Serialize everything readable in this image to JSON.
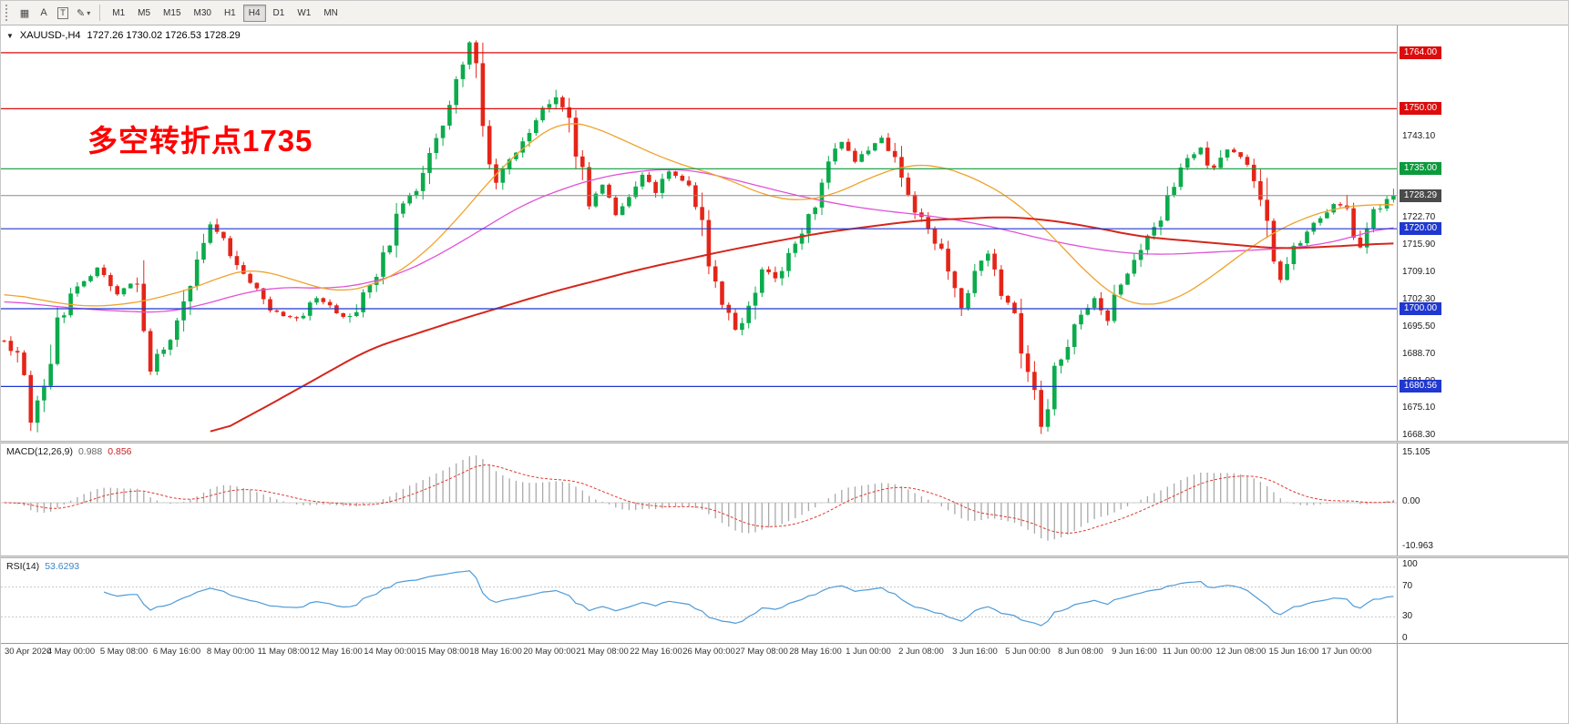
{
  "toolbar": {
    "timeframes": [
      "M1",
      "M5",
      "M15",
      "M30",
      "H1",
      "H4",
      "D1",
      "W1",
      "MN"
    ],
    "active_timeframe": "H4"
  },
  "icons": {
    "collapse": "▼",
    "chevron_down": "▾",
    "charts": "▦",
    "text_label": "A",
    "text": "T",
    "draw": "✎"
  },
  "chart": {
    "header": {
      "symbol": "XAUUSD-,H4",
      "ohlc": "1727.26 1730.02 1726.53 1728.29"
    },
    "annotation": {
      "text": "多空转折点1735",
      "color": "#ff0000"
    },
    "hlines": [
      {
        "price": 1764.0,
        "label": "1764.00",
        "color": "#dc0c0c"
      },
      {
        "price": 1750.0,
        "label": "1750.00",
        "color": "#dc0c0c"
      },
      {
        "price": 1735.0,
        "label": "1735.00",
        "color": "#0c9a3c"
      },
      {
        "price": 1720.0,
        "label": "1720.00",
        "color": "#2038cf"
      },
      {
        "price": 1700.0,
        "label": "1700.00",
        "color": "#2038cf"
      },
      {
        "price": 1680.56,
        "label": "1680.56",
        "color": "#2038cf"
      }
    ],
    "current_price": {
      "price": 1728.29,
      "label": "1728.29",
      "color": "#4a4a4a",
      "line_color": "#8a8a8a"
    },
    "y_axis": {
      "ticks": [
        {
          "price": 1743.1,
          "label": "1743.10"
        },
        {
          "price": 1722.7,
          "label": "1722.70"
        },
        {
          "price": 1715.9,
          "label": "1715.90"
        },
        {
          "price": 1709.1,
          "label": "1709.10"
        },
        {
          "price": 1702.3,
          "label": "1702.30"
        },
        {
          "price": 1695.5,
          "label": "1695.50"
        },
        {
          "price": 1688.7,
          "label": "1688.70"
        },
        {
          "price": 1681.9,
          "label": "1681.90"
        },
        {
          "price": 1675.1,
          "label": "1675.10"
        },
        {
          "price": 1668.3,
          "label": "1668.30"
        }
      ]
    },
    "x_axis": {
      "labels": [
        "30 Apr 2020",
        "4 May 00:00",
        "5 May 08:00",
        "6 May 16:00",
        "8 May 00:00",
        "11 May 08:00",
        "12 May 16:00",
        "14 May 00:00",
        "15 May 08:00",
        "18 May 16:00",
        "20 May 00:00",
        "21 May 08:00",
        "22 May 16:00",
        "26 May 00:00",
        "27 May 08:00",
        "28 May 16:00",
        "1 Jun 00:00",
        "2 Jun 08:00",
        "3 Jun 16:00",
        "5 Jun 00:00",
        "8 Jun 08:00",
        "9 Jun 16:00",
        "11 Jun 00:00",
        "12 Jun 08:00",
        "15 Jun 16:00",
        "17 Jun 00:00"
      ]
    }
  },
  "indicators": {
    "macd": {
      "label": "MACD(12,26,9)",
      "value1": "0.988",
      "value2": "0.856",
      "axis": [
        "15.105",
        "0.00",
        "-10.963"
      ]
    },
    "rsi": {
      "label": "RSI(14)",
      "value": "53.6293",
      "axis": [
        "100",
        "70",
        "30",
        "0"
      ]
    }
  },
  "chart_data": {
    "type": "candlestick",
    "symbol": "XAUUSD-",
    "timeframe": "H4",
    "candle_count": 210,
    "y_range": [
      1667.0,
      1770.8
    ],
    "ohlc_current": {
      "open": 1727.26,
      "high": 1730.02,
      "low": 1726.53,
      "close": 1728.29
    },
    "price_path": [
      [
        0,
        1692
      ],
      [
        2,
        1688
      ],
      [
        4,
        1672
      ],
      [
        6,
        1680
      ],
      [
        8,
        1696
      ],
      [
        11,
        1706
      ],
      [
        14,
        1710
      ],
      [
        17,
        1704
      ],
      [
        20,
        1707
      ],
      [
        22,
        1686
      ],
      [
        24,
        1690
      ],
      [
        27,
        1701
      ],
      [
        29,
        1713
      ],
      [
        31,
        1722
      ],
      [
        33,
        1717
      ],
      [
        36,
        1709
      ],
      [
        40,
        1700
      ],
      [
        44,
        1697
      ],
      [
        47,
        1703
      ],
      [
        50,
        1699
      ],
      [
        52,
        1697
      ],
      [
        54,
        1704
      ],
      [
        56,
        1709
      ],
      [
        58,
        1717
      ],
      [
        60,
        1727
      ],
      [
        62,
        1729
      ],
      [
        64,
        1737
      ],
      [
        66,
        1747
      ],
      [
        68,
        1757
      ],
      [
        70,
        1765
      ],
      [
        71,
        1758
      ],
      [
        72,
        1746
      ],
      [
        73,
        1734
      ],
      [
        74,
        1731
      ],
      [
        76,
        1737
      ],
      [
        78,
        1742
      ],
      [
        80,
        1747
      ],
      [
        82,
        1752
      ],
      [
        83,
        1754
      ],
      [
        85,
        1747
      ],
      [
        87,
        1733
      ],
      [
        88,
        1726
      ],
      [
        90,
        1730
      ],
      [
        92,
        1724
      ],
      [
        94,
        1728
      ],
      [
        96,
        1733
      ],
      [
        98,
        1729
      ],
      [
        100,
        1734
      ],
      [
        102,
        1732
      ],
      [
        104,
        1728
      ],
      [
        106,
        1713
      ],
      [
        108,
        1701
      ],
      [
        110,
        1694
      ],
      [
        112,
        1699
      ],
      [
        114,
        1710
      ],
      [
        116,
        1707
      ],
      [
        118,
        1713
      ],
      [
        120,
        1719
      ],
      [
        122,
        1727
      ],
      [
        124,
        1737
      ],
      [
        126,
        1742
      ],
      [
        128,
        1737
      ],
      [
        130,
        1740
      ],
      [
        132,
        1744
      ],
      [
        134,
        1737
      ],
      [
        136,
        1728
      ],
      [
        138,
        1722
      ],
      [
        140,
        1717
      ],
      [
        142,
        1711
      ],
      [
        144,
        1701
      ],
      [
        146,
        1709
      ],
      [
        148,
        1714
      ],
      [
        150,
        1704
      ],
      [
        152,
        1697
      ],
      [
        154,
        1684
      ],
      [
        156,
        1671
      ],
      [
        157,
        1676
      ],
      [
        158,
        1684
      ],
      [
        160,
        1691
      ],
      [
        162,
        1699
      ],
      [
        164,
        1703
      ],
      [
        166,
        1698
      ],
      [
        168,
        1706
      ],
      [
        170,
        1713
      ],
      [
        172,
        1719
      ],
      [
        174,
        1723
      ],
      [
        176,
        1731
      ],
      [
        178,
        1738
      ],
      [
        180,
        1740
      ],
      [
        182,
        1734
      ],
      [
        184,
        1740
      ],
      [
        186,
        1738
      ],
      [
        188,
        1733
      ],
      [
        190,
        1722
      ],
      [
        191,
        1710
      ],
      [
        192,
        1707
      ],
      [
        194,
        1715
      ],
      [
        196,
        1720
      ],
      [
        198,
        1723
      ],
      [
        200,
        1726
      ],
      [
        202,
        1726
      ],
      [
        203,
        1717
      ],
      [
        204,
        1716
      ],
      [
        206,
        1724
      ],
      [
        208,
        1727
      ],
      [
        209,
        1728.3
      ]
    ],
    "moving_averages": [
      {
        "name": "ma-fast-magenta",
        "color": "#df52d8",
        "width": 1.3,
        "path": [
          [
            0,
            1702
          ],
          [
            8,
            1700.5
          ],
          [
            16,
            1699.5
          ],
          [
            24,
            1699
          ],
          [
            30,
            1701
          ],
          [
            36,
            1704
          ],
          [
            42,
            1705.5
          ],
          [
            48,
            1705
          ],
          [
            54,
            1706
          ],
          [
            60,
            1709
          ],
          [
            66,
            1714
          ],
          [
            72,
            1720
          ],
          [
            78,
            1726
          ],
          [
            84,
            1730
          ],
          [
            90,
            1733
          ],
          [
            96,
            1734.5
          ],
          [
            100,
            1735
          ],
          [
            104,
            1734.5
          ],
          [
            108,
            1733
          ],
          [
            114,
            1730.5
          ],
          [
            120,
            1728
          ],
          [
            126,
            1726
          ],
          [
            132,
            1724.5
          ],
          [
            138,
            1723.5
          ],
          [
            144,
            1722
          ],
          [
            150,
            1720
          ],
          [
            156,
            1717.5
          ],
          [
            162,
            1715.5
          ],
          [
            168,
            1714
          ],
          [
            174,
            1713.5
          ],
          [
            180,
            1714
          ],
          [
            186,
            1714.5
          ],
          [
            192,
            1715
          ],
          [
            198,
            1716
          ],
          [
            203,
            1718
          ],
          [
            209,
            1721
          ]
        ]
      },
      {
        "name": "ma-mid-orange",
        "color": "#efa32c",
        "width": 1.3,
        "path": [
          [
            0,
            1704
          ],
          [
            6,
            1702
          ],
          [
            12,
            1700.5
          ],
          [
            18,
            1701
          ],
          [
            24,
            1703
          ],
          [
            30,
            1706
          ],
          [
            34,
            1709
          ],
          [
            38,
            1710
          ],
          [
            44,
            1707
          ],
          [
            50,
            1704
          ],
          [
            56,
            1706
          ],
          [
            62,
            1712
          ],
          [
            68,
            1722
          ],
          [
            74,
            1734
          ],
          [
            80,
            1743
          ],
          [
            84,
            1747
          ],
          [
            88,
            1746
          ],
          [
            92,
            1743
          ],
          [
            96,
            1740
          ],
          [
            100,
            1737
          ],
          [
            104,
            1735
          ],
          [
            108,
            1733
          ],
          [
            112,
            1730
          ],
          [
            116,
            1727.5
          ],
          [
            120,
            1727
          ],
          [
            124,
            1728
          ],
          [
            128,
            1731
          ],
          [
            132,
            1734
          ],
          [
            136,
            1736
          ],
          [
            140,
            1736
          ],
          [
            144,
            1734
          ],
          [
            148,
            1731
          ],
          [
            152,
            1727
          ],
          [
            156,
            1721
          ],
          [
            160,
            1714
          ],
          [
            164,
            1707
          ],
          [
            168,
            1702
          ],
          [
            172,
            1700.5
          ],
          [
            176,
            1702
          ],
          [
            180,
            1706
          ],
          [
            184,
            1711
          ],
          [
            188,
            1716
          ],
          [
            192,
            1720
          ],
          [
            196,
            1723
          ],
          [
            200,
            1725
          ],
          [
            204,
            1726
          ],
          [
            209,
            1726
          ]
        ]
      },
      {
        "name": "ma-slow-red",
        "color": "#d4261c",
        "width": 2,
        "path": [
          [
            31,
            1668
          ],
          [
            41,
            1677
          ],
          [
            55,
            1690
          ],
          [
            68,
            1697
          ],
          [
            82,
            1704
          ],
          [
            96,
            1710
          ],
          [
            110,
            1715
          ],
          [
            123,
            1719
          ],
          [
            137,
            1722
          ],
          [
            151,
            1723
          ],
          [
            158,
            1722
          ],
          [
            165,
            1720
          ],
          [
            171,
            1718
          ],
          [
            178,
            1717
          ],
          [
            185,
            1716
          ],
          [
            192,
            1715
          ],
          [
            199,
            1715.5
          ],
          [
            205,
            1716
          ],
          [
            209,
            1716.5
          ]
        ]
      }
    ],
    "support_resistance_levels": [
      1764.0,
      1750.0,
      1735.0,
      1720.0,
      1700.0,
      1680.56
    ],
    "macd": {
      "fast": 12,
      "slow": 26,
      "signal": 9,
      "last_main": 0.988,
      "last_signal": 0.856,
      "scale_max": 15.105,
      "scale_min": -10.963
    },
    "rsi": {
      "period": 14,
      "last": 53.6293,
      "levels": [
        30,
        70
      ]
    },
    "colors": {
      "up": "#0cab4c",
      "down": "#e42518",
      "macd_hist": "#a9a9a9",
      "macd_signal": "#e03a30",
      "rsi": "#4f9bd8"
    }
  }
}
